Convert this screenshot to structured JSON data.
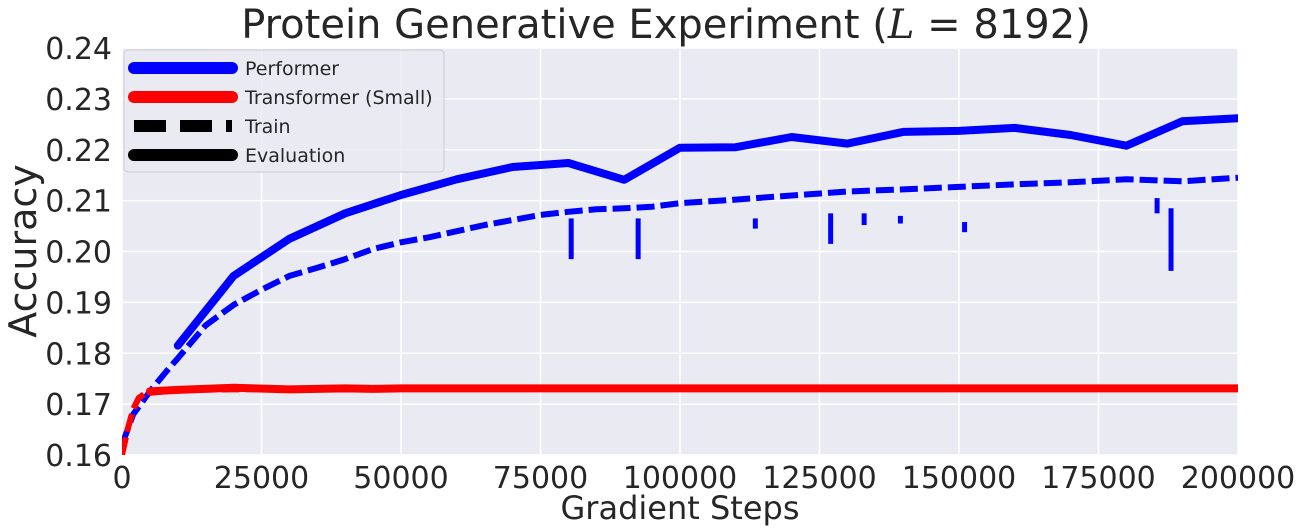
{
  "chart_data": {
    "type": "line",
    "title": "Protein Generative Experiment (L = 8192)",
    "title_parts": {
      "prefix": "Protein Generative Experiment (",
      "variable": "L",
      "equals": " = ",
      "value": "8192",
      "suffix": ")"
    },
    "xlabel": "Gradient Steps",
    "ylabel": "Accuracy",
    "xlim": [
      0,
      200000
    ],
    "ylim": [
      0.16,
      0.24
    ],
    "xticks": [
      0,
      25000,
      50000,
      75000,
      100000,
      125000,
      150000,
      175000,
      200000
    ],
    "xtick_labels": [
      "0",
      "25000",
      "50000",
      "75000",
      "100000",
      "125000",
      "150000",
      "175000",
      "200000"
    ],
    "yticks": [
      0.16,
      0.17,
      0.18,
      0.19,
      0.2,
      0.21,
      0.22,
      0.23,
      0.24
    ],
    "ytick_labels": [
      "0.16",
      "0.17",
      "0.18",
      "0.19",
      "0.20",
      "0.21",
      "0.22",
      "0.23",
      "0.24"
    ],
    "grid": true,
    "background": "#eaeaf2",
    "legend_position": "top-left",
    "legend": [
      {
        "label": "Performer",
        "color": "#0000ff",
        "style": "solid"
      },
      {
        "label": "Transformer (Small)",
        "color": "#ff0000",
        "style": "solid"
      },
      {
        "label": "Train",
        "color": "#000000",
        "style": "dashed"
      },
      {
        "label": "Evaluation",
        "color": "#000000",
        "style": "solid"
      }
    ],
    "series": [
      {
        "name": "Performer",
        "subset": "Evaluation",
        "color": "#0000ff",
        "style": "solid",
        "x": [
          10000,
          20000,
          30000,
          40000,
          50000,
          60000,
          70000,
          80000,
          90000,
          100000,
          110000,
          120000,
          130000,
          140000,
          150000,
          160000,
          170000,
          180000,
          190000,
          200000
        ],
        "y": [
          0.1815,
          0.1952,
          0.2025,
          0.2075,
          0.2111,
          0.2142,
          0.2166,
          0.2174,
          0.2141,
          0.2204,
          0.2205,
          0.2225,
          0.2212,
          0.2235,
          0.2237,
          0.2243,
          0.2229,
          0.2208,
          0.2256,
          0.2262
        ]
      },
      {
        "name": "Performer",
        "subset": "Train",
        "color": "#0000ff",
        "style": "dashed",
        "x": [
          0,
          2000,
          5000,
          8000,
          10000,
          15000,
          20000,
          25000,
          30000,
          35000,
          40000,
          45000,
          50000,
          55000,
          60000,
          65000,
          70000,
          75000,
          80000,
          85000,
          90000,
          95000,
          100000,
          110000,
          120000,
          130000,
          140000,
          150000,
          160000,
          170000,
          180000,
          190000,
          200000
        ],
        "y": [
          0.162,
          0.168,
          0.1725,
          0.1765,
          0.179,
          0.1855,
          0.1895,
          0.1925,
          0.1952,
          0.1968,
          0.1985,
          0.2005,
          0.2018,
          0.2028,
          0.204,
          0.2052,
          0.2062,
          0.2072,
          0.2078,
          0.2083,
          0.2085,
          0.2088,
          0.2095,
          0.2102,
          0.211,
          0.2118,
          0.2122,
          0.2127,
          0.2132,
          0.2136,
          0.2142,
          0.2138,
          0.2145
        ]
      },
      {
        "name": "Transformer (Small)",
        "subset": "Evaluation",
        "color": "#ff0000",
        "style": "solid",
        "x": [
          5000,
          10000,
          20000,
          30000,
          40000,
          45000,
          50000,
          60000,
          80000,
          100000,
          120000,
          140000,
          160000,
          180000,
          200000
        ],
        "y": [
          0.1725,
          0.1728,
          0.1732,
          0.1729,
          0.1731,
          0.173,
          0.1731,
          0.1731,
          0.1731,
          0.1731,
          0.1731,
          0.1731,
          0.1731,
          0.1731,
          0.1731
        ]
      },
      {
        "name": "Transformer (Small)",
        "subset": "Train",
        "color": "#ff0000",
        "style": "dashed",
        "x": [
          0,
          1000,
          2000,
          3000,
          4000,
          5000,
          10000,
          20000,
          30000,
          40000,
          48000
        ],
        "y": [
          0.16,
          0.165,
          0.169,
          0.1712,
          0.172,
          0.1722,
          0.1728,
          0.1729,
          0.173,
          0.173,
          0.1731
        ]
      }
    ],
    "train_dips": [
      {
        "x": 80500,
        "y_top": 0.2065,
        "y_bottom": 0.1985
      },
      {
        "x": 92500,
        "y_top": 0.2065,
        "y_bottom": 0.1985
      },
      {
        "x": 113500,
        "y_top": 0.2065,
        "y_bottom": 0.2045
      },
      {
        "x": 127000,
        "y_top": 0.2075,
        "y_bottom": 0.2015
      },
      {
        "x": 133000,
        "y_top": 0.2075,
        "y_bottom": 0.2052
      },
      {
        "x": 139500,
        "y_top": 0.207,
        "y_bottom": 0.2055
      },
      {
        "x": 151000,
        "y_top": 0.2058,
        "y_bottom": 0.2038
      },
      {
        "x": 185500,
        "y_top": 0.2105,
        "y_bottom": 0.2075
      },
      {
        "x": 188000,
        "y_top": 0.2085,
        "y_bottom": 0.1962
      }
    ]
  }
}
